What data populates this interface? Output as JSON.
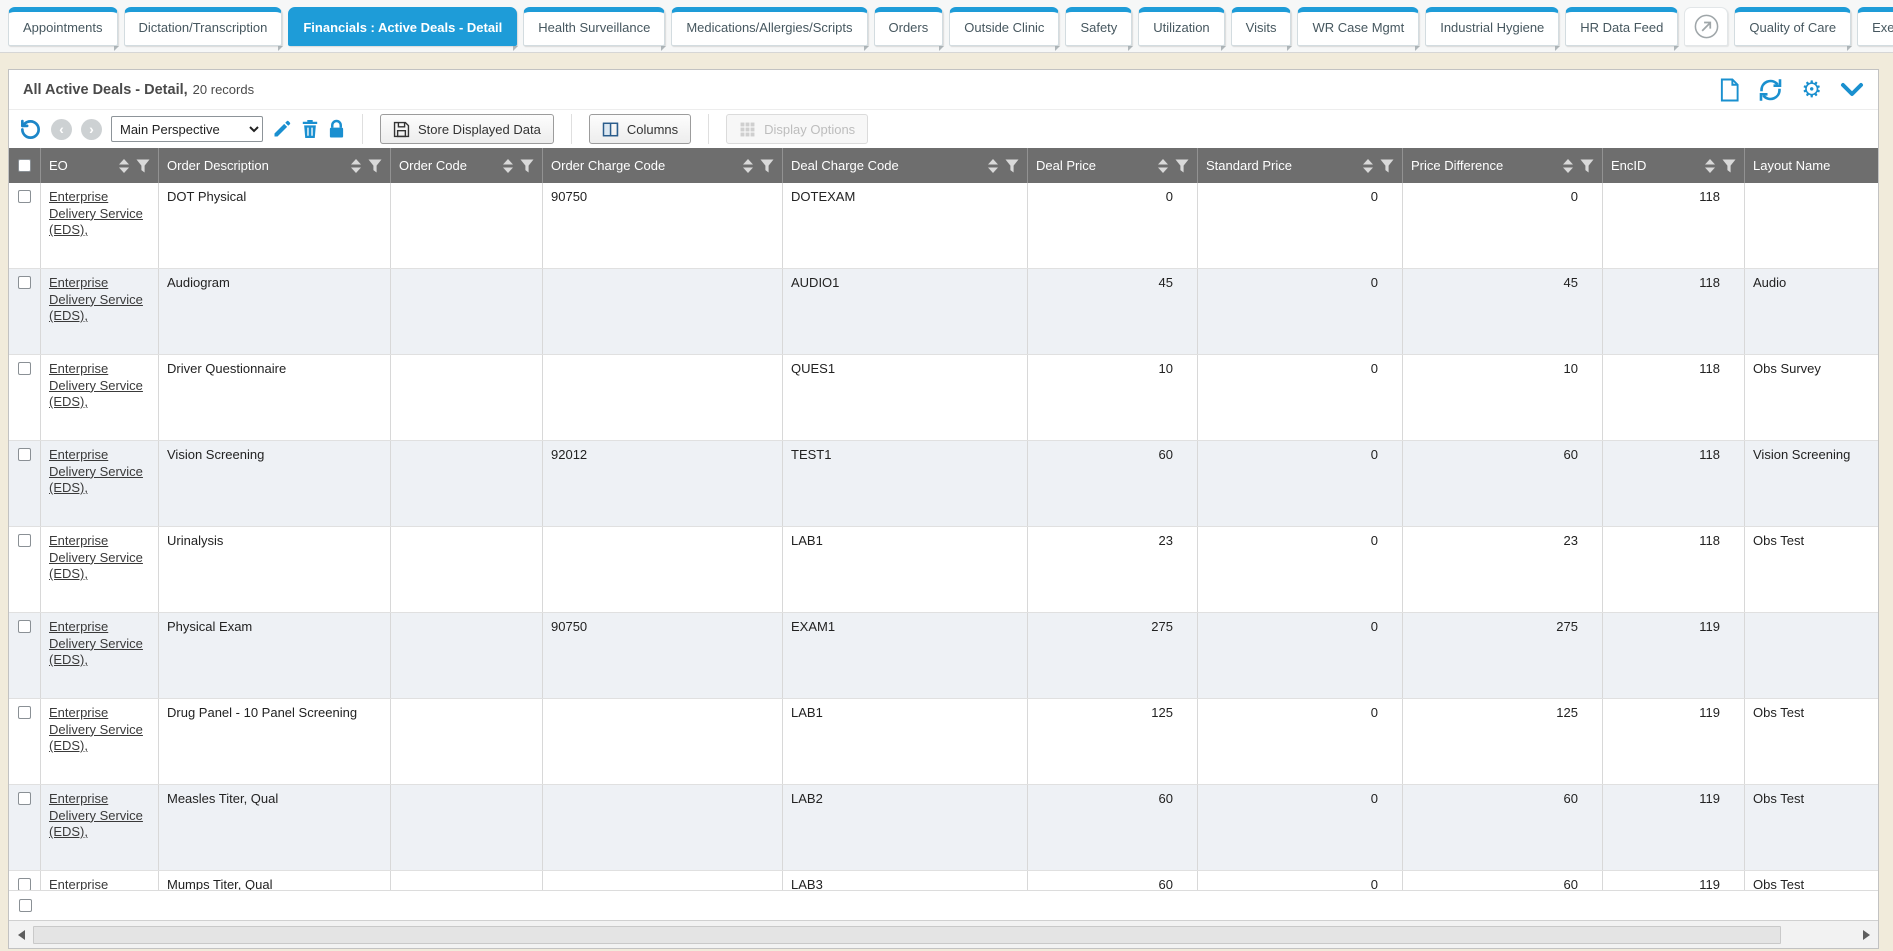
{
  "colors": {
    "accent_blue": "#1E9CD8",
    "icon_blue": "#1A90CF",
    "page_background_beige": "#F1EBDB",
    "grid_header_gray": "#6E6E6E",
    "alt_row_background": "#EEF1F5"
  },
  "tab_bar": {
    "tabs": [
      {
        "label": "Appointments"
      },
      {
        "label": "Dictation/Transcription"
      },
      {
        "label": "Financials : Active Deals - Detail",
        "active": true
      },
      {
        "label": "Health Surveillance"
      },
      {
        "label": "Medications/Allergies/Scripts"
      },
      {
        "label": "Orders"
      },
      {
        "label": "Outside Clinic"
      },
      {
        "label": "Safety"
      },
      {
        "label": "Utilization"
      },
      {
        "label": "Visits"
      },
      {
        "label": "WR Case Mgmt"
      },
      {
        "label": "Industrial Hygiene"
      },
      {
        "label": "HR Data Feed",
        "trailing_external_icon": true
      },
      {
        "label": "Quality of Care"
      },
      {
        "label": "Executive"
      }
    ]
  },
  "panel_header": {
    "title": "All Active Deals - Detail,",
    "records": "20 records",
    "icons": [
      "new-document",
      "refresh",
      "settings-gear",
      "collapse-chevron"
    ]
  },
  "toolbar": {
    "perspective_select_value": "Main Perspective",
    "store_button_label": "Store Displayed Data",
    "columns_button_label": "Columns",
    "display_options_button_label": "Display Options",
    "icons": [
      "undo",
      "back",
      "forward",
      "edit-pencil",
      "delete-trash",
      "lock"
    ]
  },
  "grid": {
    "columns": [
      {
        "label": "EO",
        "sortable": true,
        "filterable": true
      },
      {
        "label": "Order Description",
        "sortable": true,
        "filterable": true
      },
      {
        "label": "Order Code",
        "sortable": true,
        "filterable": true
      },
      {
        "label": "Order Charge Code",
        "sortable": true,
        "filterable": true
      },
      {
        "label": "Deal Charge Code",
        "sortable": true,
        "filterable": true
      },
      {
        "label": "Deal Price",
        "sortable": true,
        "filterable": true,
        "numeric": true
      },
      {
        "label": "Standard Price",
        "sortable": true,
        "filterable": true,
        "numeric": true
      },
      {
        "label": "Price Difference",
        "sortable": true,
        "filterable": true,
        "numeric": true
      },
      {
        "label": "EncID",
        "sortable": true,
        "filterable": true,
        "numeric": true
      },
      {
        "label": "Layout Name",
        "sortable": false,
        "filterable": false
      }
    ],
    "rows": [
      {
        "eo_link": "Enterprise Delivery Service (EDS),",
        "order_description": "DOT Physical",
        "order_code": "",
        "order_charge_code": "90750",
        "deal_charge_code": "DOTEXAM",
        "deal_price": "0",
        "standard_price": "0",
        "price_difference": "0",
        "enc_id": "118",
        "layout_name": ""
      },
      {
        "eo_link": "Enterprise Delivery Service (EDS),",
        "order_description": "Audiogram",
        "order_code": "",
        "order_charge_code": "",
        "deal_charge_code": "AUDIO1",
        "deal_price": "45",
        "standard_price": "0",
        "price_difference": "45",
        "enc_id": "118",
        "layout_name": "Audio"
      },
      {
        "eo_link": "Enterprise Delivery Service (EDS),",
        "order_description": "Driver Questionnaire",
        "order_code": "",
        "order_charge_code": "",
        "deal_charge_code": "QUES1",
        "deal_price": "10",
        "standard_price": "0",
        "price_difference": "10",
        "enc_id": "118",
        "layout_name": "Obs Survey"
      },
      {
        "eo_link": "Enterprise Delivery Service (EDS),",
        "order_description": "Vision Screening",
        "order_code": "",
        "order_charge_code": "92012",
        "deal_charge_code": "TEST1",
        "deal_price": "60",
        "standard_price": "0",
        "price_difference": "60",
        "enc_id": "118",
        "layout_name": "Vision Screening"
      },
      {
        "eo_link": "Enterprise Delivery Service (EDS),",
        "order_description": "Urinalysis",
        "order_code": "",
        "order_charge_code": "",
        "deal_charge_code": "LAB1",
        "deal_price": "23",
        "standard_price": "0",
        "price_difference": "23",
        "enc_id": "118",
        "layout_name": "Obs Test"
      },
      {
        "eo_link": "Enterprise Delivery Service (EDS),",
        "order_description": "Physical Exam",
        "order_code": "",
        "order_charge_code": "90750",
        "deal_charge_code": "EXAM1",
        "deal_price": "275",
        "standard_price": "0",
        "price_difference": "275",
        "enc_id": "119",
        "layout_name": ""
      },
      {
        "eo_link": "Enterprise Delivery Service (EDS),",
        "order_description": "Drug Panel - 10 Panel Screening",
        "order_code": "",
        "order_charge_code": "",
        "deal_charge_code": "LAB1",
        "deal_price": "125",
        "standard_price": "0",
        "price_difference": "125",
        "enc_id": "119",
        "layout_name": "Obs Test"
      },
      {
        "eo_link": "Enterprise Delivery Service (EDS),",
        "order_description": "Measles Titer, Qual",
        "order_code": "",
        "order_charge_code": "",
        "deal_charge_code": "LAB2",
        "deal_price": "60",
        "standard_price": "0",
        "price_difference": "60",
        "enc_id": "119",
        "layout_name": "Obs Test"
      },
      {
        "eo_link": "Enterprise Delivery Service (EDS),",
        "order_description": "Mumps Titer, Qual",
        "order_code": "",
        "order_charge_code": "",
        "deal_charge_code": "LAB3",
        "deal_price": "60",
        "standard_price": "0",
        "price_difference": "60",
        "enc_id": "119",
        "layout_name": "Obs Test"
      }
    ]
  }
}
